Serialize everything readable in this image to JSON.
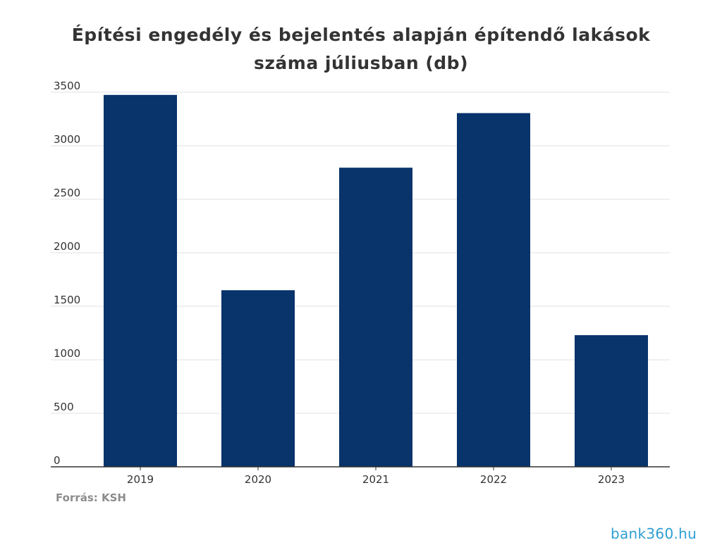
{
  "title": {
    "line1": "Építési engedély és bejelentés alapján építendő lakások",
    "line2": "száma júliusban (db)"
  },
  "source": "Forrás: KSH",
  "brand": "bank360.hu",
  "colors": {
    "bar": "#08336b",
    "grid": "#e2e2e2",
    "axis": "#333333",
    "tick_text": "#333333",
    "source_text": "#8c8c8c",
    "brand": "#2e9fd3"
  },
  "chart_data": {
    "type": "bar",
    "title": "Építési engedély és bejelentés alapján építendő lakások száma júliusban (db)",
    "categories": [
      "2019",
      "2020",
      "2021",
      "2022",
      "2023"
    ],
    "values": [
      3475,
      1650,
      2795,
      3305,
      1230
    ],
    "xlabel": "",
    "ylabel": "",
    "ylim": [
      0,
      3500
    ],
    "yticks": [
      "0",
      "500",
      "1000",
      "1500",
      "2000",
      "2500",
      "3000",
      "3500"
    ],
    "grid": true,
    "legend": "none"
  }
}
